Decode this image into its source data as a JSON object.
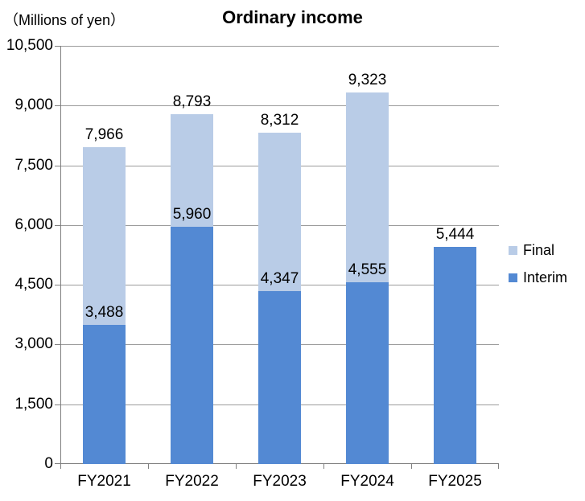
{
  "chart_data": {
    "type": "bar",
    "stacked": true,
    "title": "Ordinary income",
    "unit_label": "（Millions of yen）",
    "categories": [
      "FY2021",
      "FY2022",
      "FY2023",
      "FY2024",
      "FY2025"
    ],
    "series": [
      {
        "name": "Interim",
        "color": "#5389D3",
        "values": [
          3488,
          5960,
          4347,
          4555,
          5444
        ]
      },
      {
        "name": "Final",
        "color": "#B9CCE7",
        "values": [
          4478,
          2833,
          3965,
          4768,
          0
        ]
      }
    ],
    "totals": [
      7966,
      8793,
      8312,
      9323,
      5444
    ],
    "data_labels": {
      "interim": [
        "3,488",
        "5,960",
        "4,347",
        "4,555",
        "5,444"
      ],
      "total": [
        "7,966",
        "8,793",
        "8,312",
        "9,323",
        ""
      ]
    },
    "y_axis": {
      "min": 0,
      "max": 10500,
      "step": 1500,
      "tick_labels": [
        "0",
        "1,500",
        "3,000",
        "4,500",
        "6,000",
        "7,500",
        "9,000",
        "10,500"
      ]
    },
    "legend": {
      "position": "right",
      "entries": [
        {
          "label": "Final",
          "color": "#B9CCE7"
        },
        {
          "label": "Interim",
          "color": "#5389D3"
        }
      ]
    },
    "grid": true,
    "colors": {
      "gridline": "#9B9B9B",
      "axis": "#808080",
      "text": "#000000",
      "background": "#FFFFFF"
    }
  }
}
